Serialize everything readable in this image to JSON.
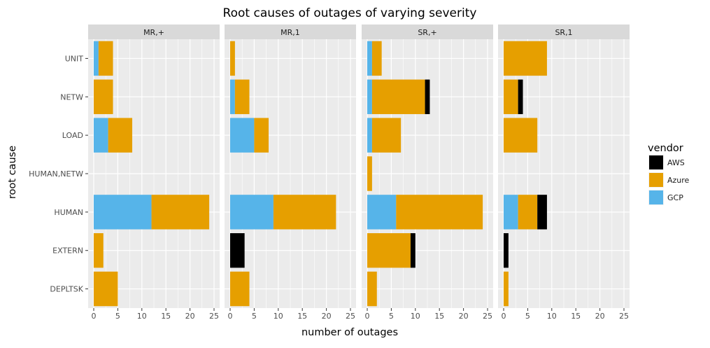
{
  "chart_data": {
    "type": "bar",
    "orientation": "horizontal",
    "stacked": true,
    "title": "Root causes of outages of varying severity",
    "xlabel": "number of outages",
    "ylabel": "root cause",
    "xlim": [
      0,
      25
    ],
    "xticks": [
      0,
      5,
      10,
      15,
      20,
      25
    ],
    "grid": true,
    "legend": {
      "title": "vendor",
      "position": "right",
      "entries": [
        {
          "name": "AWS",
          "color": "#000000"
        },
        {
          "name": "Azure",
          "color": "#E69F00"
        },
        {
          "name": "GCP",
          "color": "#56B4E9"
        }
      ]
    },
    "categories": [
      "UNIT",
      "NETW",
      "LOAD",
      "HUMAN,NETW",
      "HUMAN",
      "EXTERN",
      "DEPLTSK"
    ],
    "stack_order": [
      "GCP",
      "Azure",
      "AWS"
    ],
    "facets": [
      {
        "name": "MR,+",
        "values": {
          "UNIT": {
            "GCP": 1,
            "Azure": 3,
            "AWS": 0
          },
          "NETW": {
            "GCP": 0,
            "Azure": 4,
            "AWS": 0
          },
          "LOAD": {
            "GCP": 3,
            "Azure": 5,
            "AWS": 0
          },
          "HUMAN,NETW": {
            "GCP": 0,
            "Azure": 0,
            "AWS": 0
          },
          "HUMAN": {
            "GCP": 12,
            "Azure": 12,
            "AWS": 0
          },
          "EXTERN": {
            "GCP": 0,
            "Azure": 2,
            "AWS": 0
          },
          "DEPLTSK": {
            "GCP": 0,
            "Azure": 5,
            "AWS": 0
          }
        }
      },
      {
        "name": "MR,1",
        "values": {
          "UNIT": {
            "GCP": 0,
            "Azure": 1,
            "AWS": 0
          },
          "NETW": {
            "GCP": 1,
            "Azure": 3,
            "AWS": 0
          },
          "LOAD": {
            "GCP": 5,
            "Azure": 3,
            "AWS": 0
          },
          "HUMAN,NETW": {
            "GCP": 0,
            "Azure": 0,
            "AWS": 0
          },
          "HUMAN": {
            "GCP": 9,
            "Azure": 13,
            "AWS": 0
          },
          "EXTERN": {
            "GCP": 0,
            "Azure": 0,
            "AWS": 3
          },
          "DEPLTSK": {
            "GCP": 0,
            "Azure": 4,
            "AWS": 0
          }
        }
      },
      {
        "name": "SR,+",
        "values": {
          "UNIT": {
            "GCP": 1,
            "Azure": 2,
            "AWS": 0
          },
          "NETW": {
            "GCP": 1,
            "Azure": 11,
            "AWS": 1
          },
          "LOAD": {
            "GCP": 1,
            "Azure": 6,
            "AWS": 0
          },
          "HUMAN,NETW": {
            "GCP": 0,
            "Azure": 1,
            "AWS": 0
          },
          "HUMAN": {
            "GCP": 6,
            "Azure": 18,
            "AWS": 0
          },
          "EXTERN": {
            "GCP": 0,
            "Azure": 9,
            "AWS": 1
          },
          "DEPLTSK": {
            "GCP": 0,
            "Azure": 2,
            "AWS": 0
          }
        }
      },
      {
        "name": "SR,1",
        "values": {
          "UNIT": {
            "GCP": 0,
            "Azure": 9,
            "AWS": 0
          },
          "NETW": {
            "GCP": 0,
            "Azure": 3,
            "AWS": 1
          },
          "LOAD": {
            "GCP": 0,
            "Azure": 7,
            "AWS": 0
          },
          "HUMAN,NETW": {
            "GCP": 0,
            "Azure": 0,
            "AWS": 0
          },
          "HUMAN": {
            "GCP": 3,
            "Azure": 4,
            "AWS": 2
          },
          "EXTERN": {
            "GCP": 0,
            "Azure": 0,
            "AWS": 1
          },
          "DEPLTSK": {
            "GCP": 0,
            "Azure": 1,
            "AWS": 0
          }
        }
      }
    ]
  }
}
